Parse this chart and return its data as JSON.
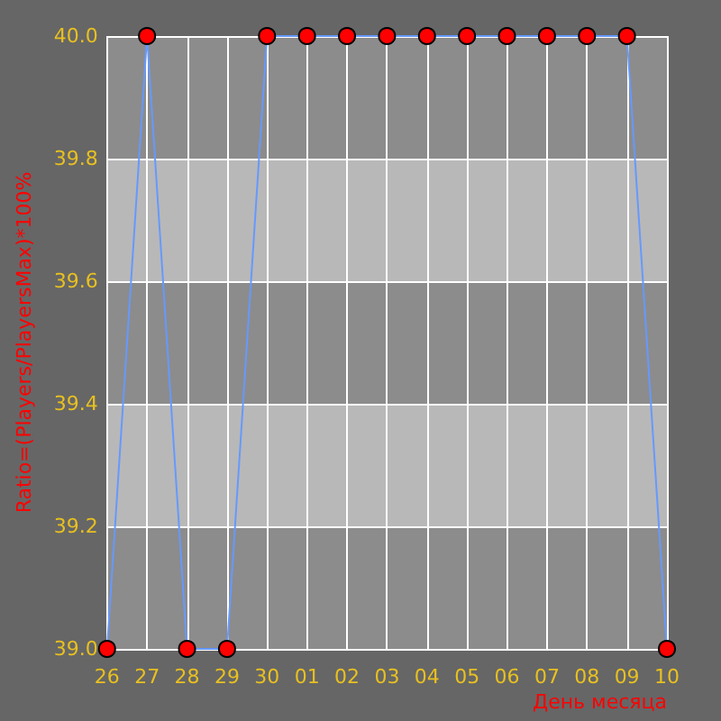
{
  "chart_data": {
    "type": "line",
    "xlabel": "День месяца",
    "ylabel": "Ratio=(Players/PlayersMax)*100%",
    "categories": [
      "26",
      "27",
      "28",
      "29",
      "30",
      "01",
      "02",
      "03",
      "04",
      "05",
      "06",
      "07",
      "08",
      "09",
      "10"
    ],
    "series": [
      {
        "color": "#6699ff",
        "values": [
          39.0,
          40.0,
          39.0,
          39.0,
          40.0,
          40.0,
          40.0,
          40.0,
          40.0,
          40.0,
          40.0,
          40.0,
          40.0,
          40.0,
          39.0
        ]
      }
    ],
    "ylim": [
      39.0,
      40.0
    ],
    "yticks": [
      {
        "value": 39.0,
        "label": "39.0"
      },
      {
        "value": 39.2,
        "label": "39.2"
      },
      {
        "value": 39.4,
        "label": "39.4"
      },
      {
        "value": 39.6,
        "label": "39.6"
      },
      {
        "value": 39.8,
        "label": "39.8"
      },
      {
        "value": 40.0,
        "label": "40.0"
      }
    ],
    "grid": true,
    "marker": "circle",
    "line_style": "solid"
  }
}
